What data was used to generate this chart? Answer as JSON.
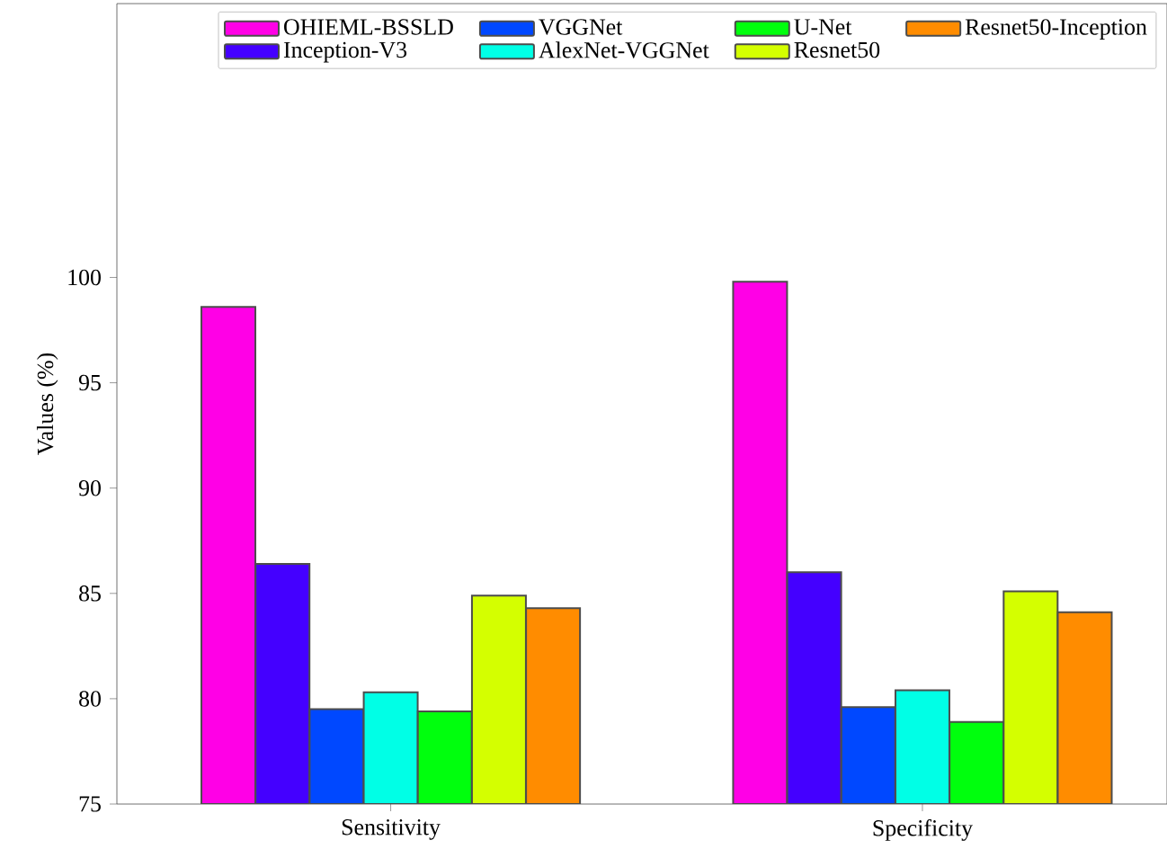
{
  "chart_data": {
    "type": "bar",
    "ylabel": "Values (%)",
    "categories": [
      "Sensitivity",
      "Specificity"
    ],
    "ylim": [
      75,
      113
    ],
    "yticks": [
      75,
      80,
      85,
      90,
      95,
      100
    ],
    "legend": "top right",
    "grid": false,
    "series": [
      {
        "name": "OHIEML-BSSLD",
        "color": "#ff00e6",
        "values": [
          98.6,
          99.8
        ]
      },
      {
        "name": "Inception-V3",
        "color": "#4400ff",
        "values": [
          86.4,
          86.0
        ]
      },
      {
        "name": "VGGNet",
        "color": "#0048ff",
        "values": [
          79.5,
          79.6
        ]
      },
      {
        "name": "AlexNet-VGGNet",
        "color": "#00ffe6",
        "values": [
          80.3,
          80.4
        ]
      },
      {
        "name": "U-Net",
        "color": "#00ff0d",
        "values": [
          79.4,
          78.9
        ]
      },
      {
        "name": "Resnet50",
        "color": "#d4ff00",
        "values": [
          84.9,
          85.1
        ]
      },
      {
        "name": "Resnet50-Inception",
        "color": "#ff8c00",
        "values": [
          84.3,
          84.1
        ]
      }
    ]
  }
}
